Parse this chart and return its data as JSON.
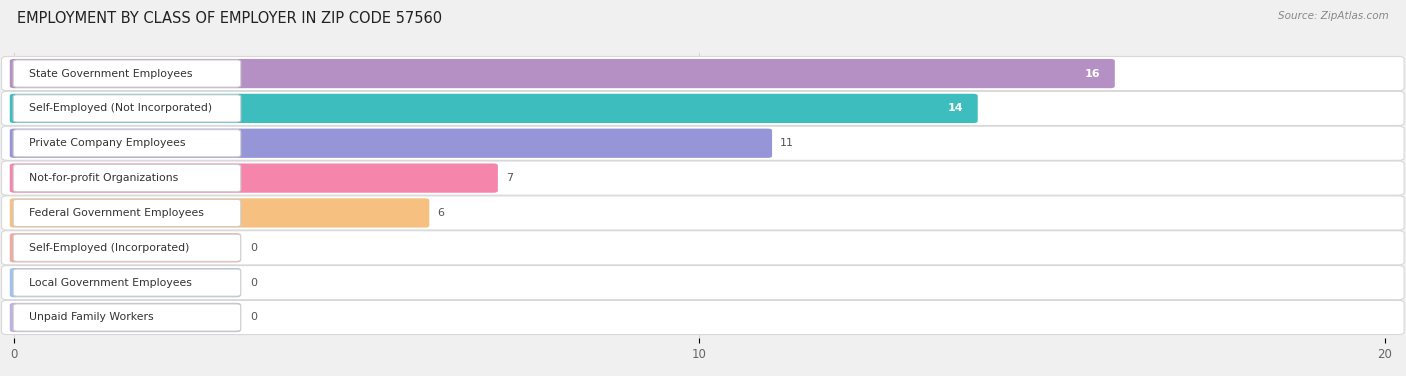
{
  "title": "EMPLOYMENT BY CLASS OF EMPLOYER IN ZIP CODE 57560",
  "source": "Source: ZipAtlas.com",
  "categories": [
    "State Government Employees",
    "Self-Employed (Not Incorporated)",
    "Private Company Employees",
    "Not-for-profit Organizations",
    "Federal Government Employees",
    "Self-Employed (Incorporated)",
    "Local Government Employees",
    "Unpaid Family Workers"
  ],
  "values": [
    16,
    14,
    11,
    7,
    6,
    0,
    0,
    0
  ],
  "bar_colors": [
    "#b590c4",
    "#3dbdbd",
    "#9595d8",
    "#f585aa",
    "#f5c080",
    "#f0a8a0",
    "#a0c0f0",
    "#c0b0e0"
  ],
  "xlim": [
    0,
    20
  ],
  "xticks": [
    0,
    10,
    20
  ],
  "background_color": "#f0f0f0",
  "row_bg_color": "#ffffff",
  "grid_color": "#cccccc",
  "title_fontsize": 10.5,
  "value_fontsize": 8
}
